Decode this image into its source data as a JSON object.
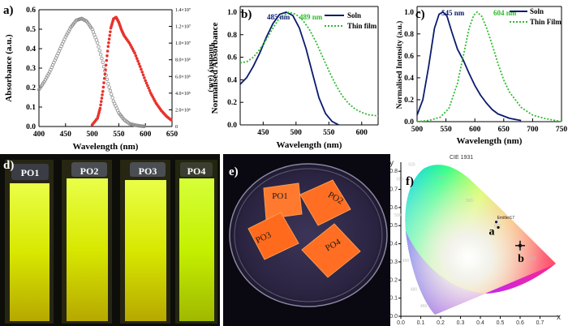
{
  "panels": {
    "a": {
      "tag": "a)",
      "xlabel": "Wavelength (nm)",
      "ylabel_left": "Absorbance (a.u.)",
      "ylabel_right": "Intensity (a.u.)",
      "xticks": [
        "400",
        "450",
        "500",
        "550",
        "600",
        "650"
      ],
      "yticks_left": [
        "0.0",
        "0.1",
        "0.2",
        "0.3",
        "0.4",
        "0.5",
        "0.6"
      ],
      "yticks_right": [
        "0",
        "2.0×10⁶",
        "4.0×10⁶",
        "6.0×10⁶",
        "8.0×10⁶",
        "1.0×10⁷",
        "1.2×10⁷",
        "1.4×10⁷"
      ]
    },
    "b": {
      "tag": "b)",
      "xlabel": "Wavelength (nm)",
      "ylabel": "Normalised Absorbance",
      "xticks": [
        "450",
        "500",
        "550",
        "600"
      ],
      "yticks": [
        "0.0",
        "0.2",
        "0.4",
        "0.6",
        "0.8",
        "1.0"
      ],
      "peak_soln": "485 nm",
      "peak_film": "489 nm",
      "legend": [
        "Soln",
        "Thin film"
      ]
    },
    "c": {
      "tag": "c)",
      "xlabel": "Wavelength (nm)",
      "ylabel": "Normalised Intensity (a.u.)",
      "xticks": [
        "500",
        "550",
        "600",
        "650",
        "700",
        "750"
      ],
      "yticks": [
        "0.0",
        "0.2",
        "0.4",
        "0.6",
        "0.8",
        "1.0"
      ],
      "peak_soln": "545 nm",
      "peak_film": "604 nm",
      "legend": [
        "Soln",
        "Thin Film"
      ]
    },
    "d": {
      "tag": "d)",
      "labels": [
        "PO1",
        "PO2",
        "PO3",
        "PO4"
      ]
    },
    "e": {
      "tag": "e)",
      "labels": [
        "PO1",
        "PO2",
        "PO3",
        "PO4"
      ]
    },
    "f": {
      "tag": "f)",
      "title": "CIE 1931",
      "xaxis": "x",
      "yaxis": "y",
      "xticks": [
        "0.0",
        "0.1",
        "0.2",
        "0.3",
        "0.4",
        "0.5",
        "0.6",
        "0.7"
      ],
      "yticks": [
        "0.0",
        "0.1",
        "0.2",
        "0.3",
        "0.4",
        "0.5",
        "0.6",
        "0.7",
        "0.8"
      ],
      "point_a_label": "a",
      "point_b_label": "b",
      "emitter_label": "Emitter17",
      "wavelength_marks": [
        "460",
        "480",
        "490",
        "500",
        "510",
        "520",
        "540",
        "560",
        "580",
        "600",
        "620"
      ]
    }
  },
  "chart_data": [
    {
      "type": "line",
      "panel": "a",
      "xlim": [
        400,
        650
      ],
      "ylim": [
        0,
        0.6
      ],
      "y2lim": [
        0,
        14000000
      ],
      "series": [
        {
          "name": "Absorbance",
          "axis": "left",
          "color": "#8c8c8c",
          "marker": "open-circle",
          "x": [
            400,
            410,
            420,
            430,
            440,
            450,
            460,
            470,
            480,
            490,
            500,
            510,
            520,
            530,
            540,
            550,
            560,
            570,
            580,
            590,
            600
          ],
          "y": [
            0.19,
            0.23,
            0.28,
            0.34,
            0.4,
            0.46,
            0.51,
            0.545,
            0.555,
            0.54,
            0.5,
            0.43,
            0.33,
            0.22,
            0.13,
            0.07,
            0.035,
            0.015,
            0.007,
            0.003,
            0.0
          ]
        },
        {
          "name": "Intensity",
          "axis": "right",
          "color": "#e8322c",
          "marker": "filled-circle",
          "x": [
            500,
            510,
            515,
            520,
            525,
            530,
            535,
            540,
            545,
            550,
            555,
            560,
            570,
            580,
            590,
            600,
            610,
            620,
            630,
            640,
            650
          ],
          "y": [
            200000.0,
            1000000.0,
            2200000.0,
            4200000.0,
            6800000.0,
            9600000.0,
            11800000.0,
            12900000.0,
            13100000.0,
            12500000.0,
            11600000.0,
            10900000.0,
            10000000.0,
            8800000.0,
            7200000.0,
            5500000.0,
            4000000.0,
            2800000.0,
            1900000.0,
            1200000.0,
            700000.0
          ]
        }
      ]
    },
    {
      "type": "line",
      "panel": "b",
      "xlim": [
        415,
        625
      ],
      "ylim": [
        0,
        1.05
      ],
      "series": [
        {
          "name": "Soln",
          "color": "#0a1a6e",
          "style": "solid",
          "x": [
            415,
            425,
            435,
            445,
            455,
            465,
            475,
            485,
            495,
            505,
            515,
            525,
            535,
            545,
            555,
            565
          ],
          "y": [
            0.36,
            0.42,
            0.52,
            0.64,
            0.78,
            0.9,
            0.98,
            1.0,
            0.97,
            0.86,
            0.68,
            0.46,
            0.24,
            0.1,
            0.03,
            0.0
          ]
        },
        {
          "name": "Thin film",
          "color": "#2dbb2d",
          "style": "dotted",
          "x": [
            415,
            425,
            435,
            445,
            455,
            465,
            475,
            489,
            500,
            510,
            520,
            530,
            540,
            550,
            560,
            570,
            580,
            590,
            600,
            610,
            625
          ],
          "y": [
            0.55,
            0.56,
            0.6,
            0.67,
            0.76,
            0.86,
            0.95,
            1.0,
            0.98,
            0.93,
            0.85,
            0.74,
            0.61,
            0.48,
            0.36,
            0.26,
            0.19,
            0.14,
            0.11,
            0.09,
            0.08
          ]
        }
      ]
    },
    {
      "type": "line",
      "panel": "c",
      "xlim": [
        500,
        750
      ],
      "ylim": [
        0,
        1.05
      ],
      "series": [
        {
          "name": "Soln",
          "color": "#0a1a6e",
          "style": "solid",
          "x": [
            500,
            510,
            520,
            530,
            538,
            545,
            552,
            560,
            570,
            580,
            590,
            600,
            610,
            620,
            630,
            640,
            660,
            680
          ],
          "y": [
            0.06,
            0.2,
            0.5,
            0.85,
            0.98,
            1.0,
            0.96,
            0.82,
            0.66,
            0.56,
            0.44,
            0.33,
            0.24,
            0.17,
            0.11,
            0.07,
            0.03,
            0.01
          ]
        },
        {
          "name": "Thin Film",
          "color": "#2dbb2d",
          "style": "dotted",
          "x": [
            500,
            520,
            540,
            555,
            570,
            580,
            590,
            598,
            604,
            612,
            620,
            630,
            640,
            650,
            660,
            680,
            700,
            720,
            740,
            750
          ],
          "y": [
            0.0,
            0.01,
            0.04,
            0.12,
            0.35,
            0.6,
            0.85,
            0.97,
            1.0,
            0.96,
            0.86,
            0.7,
            0.53,
            0.38,
            0.27,
            0.13,
            0.06,
            0.03,
            0.01,
            0.0
          ]
        }
      ]
    },
    {
      "type": "scatter",
      "panel": "f",
      "xlim": [
        0,
        0.8
      ],
      "ylim": [
        0,
        0.85
      ],
      "points": [
        {
          "label": "Emitter17",
          "x": 0.48,
          "y": 0.52
        },
        {
          "label": "a",
          "x": 0.49,
          "y": 0.49
        },
        {
          "label": "b",
          "x": 0.6,
          "y": 0.39
        }
      ]
    }
  ]
}
